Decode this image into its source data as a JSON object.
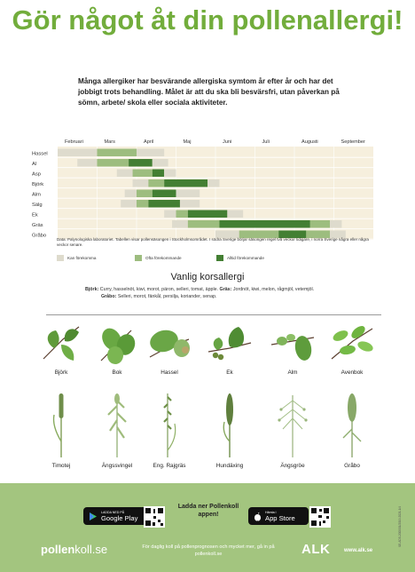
{
  "header": {
    "title": "Gör något åt din pollenallergi!",
    "intro": "Många allergiker har besvärande allergiska symtom år efter år och har det jobbigt trots behandling. Målet är att du ska bli besvärsfri, utan påverkan på sömn, arbete/ skola eller sociala aktiviteter."
  },
  "chart_data": {
    "type": "heatmap",
    "months": [
      "Februari",
      "Mars",
      "April",
      "Maj",
      "Juni",
      "Juli",
      "Augusti",
      "September"
    ],
    "legend": [
      "Kan förekomma",
      "Ofta förekommande",
      "Alltid förekommande"
    ],
    "levels": {
      "0": "Kan förekomma",
      "1": "Ofta förekommande",
      "2": "Alltid förekommande"
    },
    "colors": {
      "0": "#dedbcd",
      "1": "#9dbd7f",
      "2": "#437f33",
      "bg": "#f6efdd"
    },
    "rows": [
      {
        "name": "Hassel",
        "segments": [
          [
            1.0,
            2.0,
            0
          ],
          [
            2.0,
            3.0,
            1
          ],
          [
            3.0,
            3.7,
            0
          ]
        ]
      },
      {
        "name": "Al",
        "segments": [
          [
            1.5,
            2.0,
            0
          ],
          [
            2.0,
            2.8,
            1
          ],
          [
            2.8,
            3.4,
            2
          ],
          [
            3.4,
            3.8,
            0
          ]
        ]
      },
      {
        "name": "Asp",
        "segments": [
          [
            2.5,
            2.9,
            0
          ],
          [
            2.9,
            3.4,
            1
          ],
          [
            3.4,
            3.7,
            2
          ],
          [
            3.7,
            4.0,
            0
          ]
        ]
      },
      {
        "name": "Björk",
        "segments": [
          [
            2.9,
            3.3,
            0
          ],
          [
            3.3,
            3.7,
            1
          ],
          [
            3.7,
            4.8,
            2
          ],
          [
            4.8,
            5.1,
            0
          ]
        ]
      },
      {
        "name": "Alm",
        "segments": [
          [
            2.7,
            3.0,
            0
          ],
          [
            3.0,
            3.4,
            1
          ],
          [
            3.4,
            4.0,
            2
          ],
          [
            4.0,
            4.6,
            0
          ]
        ]
      },
      {
        "name": "Sälg",
        "segments": [
          [
            2.6,
            3.0,
            0
          ],
          [
            3.0,
            3.3,
            1
          ],
          [
            3.3,
            4.1,
            2
          ],
          [
            4.1,
            4.6,
            0
          ]
        ]
      },
      {
        "name": "Ek",
        "segments": [
          [
            3.7,
            4.0,
            0
          ],
          [
            4.0,
            4.3,
            1
          ],
          [
            4.3,
            5.3,
            2
          ],
          [
            5.3,
            5.7,
            0
          ]
        ]
      },
      {
        "name": "Gräs",
        "segments": [
          [
            3.9,
            4.3,
            0
          ],
          [
            4.3,
            5.1,
            1
          ],
          [
            5.1,
            7.4,
            2
          ],
          [
            7.4,
            7.9,
            1
          ],
          [
            7.9,
            8.2,
            0
          ]
        ]
      },
      {
        "name": "Gråbo",
        "segments": [
          [
            5.0,
            5.6,
            0
          ],
          [
            5.6,
            6.6,
            1
          ],
          [
            6.6,
            7.3,
            2
          ],
          [
            7.3,
            7.9,
            1
          ],
          [
            7.9,
            8.3,
            0
          ]
        ]
      }
    ],
    "note": "Data: Palynologiska laboratoriet. Tabellen visar pollensäsongen i Stockholmsområdet. I södra Sverige börjar säsongen regel två veckor tidigare, i norra Sverige några eller några veckor senare."
  },
  "cross_allergy": {
    "title": "Vanlig korsallergi",
    "line1_label": "Björk:",
    "line1_text": "Curry, hasselnöt, kiwi, morot, päron, selleri, tomat, äpple.",
    "line1b_label": "Gräs:",
    "line1b_text": "Jordnöt, kiwi, melon, rågmjöl, vetemjöl.",
    "line2_label": "Gråbo:",
    "line2_text": "Selleri, morot, fänkål, persilja, koriander, senap."
  },
  "plants": {
    "trees": [
      "Björk",
      "Bok",
      "Hassel",
      "Ek",
      "Alm",
      "Avenbok"
    ],
    "grasses": [
      "Timotej",
      "Ängssvingel",
      "Eng. Rajgräs",
      "Hundäxing",
      "Ängsgröe",
      "Gråbo"
    ]
  },
  "footer": {
    "google_small": "LADDA NED PÅ",
    "google_big": "Google Play",
    "apple_small": "Hämta i",
    "apple_big": "App Store",
    "ladda": "Ladda ner Pollenkoll appen!",
    "brand_bold": "pollen",
    "brand_lite": "koll.se",
    "daily": "För daglig koll på pollenprognosen och mycket mer, gå in på pollenkoll.se",
    "alk": "ALK",
    "alk_url": "www.alk.se",
    "code": "SE-ADS-2000/01/2019-2021-1/4"
  }
}
